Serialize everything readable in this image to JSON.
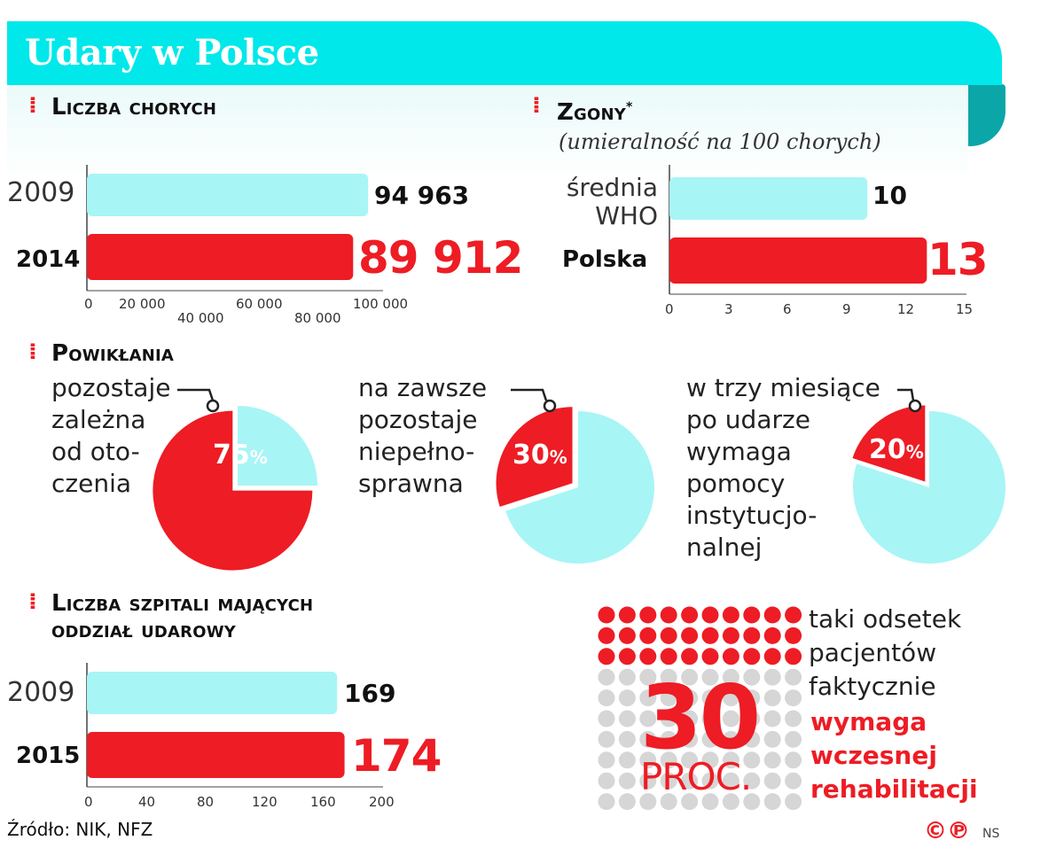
{
  "title": "Udary w Polsce",
  "colors": {
    "accent_red": "#ee1c24",
    "light_cyan": "#a8f5f6",
    "header_cyan": "#00e8ea",
    "dot_grey": "#d6d6d6"
  },
  "chart_data": [
    {
      "type": "bar",
      "orientation": "horizontal",
      "title": "Liczba chorych",
      "categories": [
        "2009",
        "2014"
      ],
      "values": [
        94963,
        89912
      ],
      "value_labels": [
        "94 963",
        "89 912"
      ],
      "xlim": [
        0,
        100000
      ],
      "ticks": [
        0,
        20000,
        40000,
        60000,
        80000,
        100000
      ],
      "tick_labels": [
        "0",
        "20 000",
        "40 000",
        "60 000",
        "80 000",
        "100 000"
      ]
    },
    {
      "type": "bar",
      "orientation": "horizontal",
      "title": "Zgony",
      "title_mark": "*",
      "subtitle": "(umieralność na 100 chorych)",
      "categories": [
        "średnia\nWHO",
        "Polska"
      ],
      "values": [
        10,
        13
      ],
      "value_labels": [
        "10",
        "13"
      ],
      "xlim": [
        0,
        15
      ],
      "ticks": [
        0,
        3,
        6,
        9,
        12,
        15
      ],
      "tick_labels": [
        "0",
        "3",
        "6",
        "9",
        "12",
        "15"
      ]
    },
    {
      "type": "pie",
      "title": "Powikłania",
      "pies": [
        {
          "label": "pozostaje\nzależna\nod oto-\nczenia",
          "value": 75,
          "value_label": "75"
        },
        {
          "label": "na zawsze\npozostaje\nniepełno-\nsprawna",
          "value": 30,
          "value_label": "30"
        },
        {
          "label": "w trzy miesiące\npo udarze\nwymaga\npomocy\ninstytucjo-\nnalnej",
          "value": 20,
          "value_label": "20"
        }
      ],
      "unit": "%"
    },
    {
      "type": "bar",
      "orientation": "horizontal",
      "title": "Liczba szpitali mających\noddział udarowy",
      "categories": [
        "2009",
        "2015"
      ],
      "values": [
        169,
        174
      ],
      "value_labels": [
        "169",
        "174"
      ],
      "xlim": [
        0,
        200
      ],
      "ticks": [
        0,
        40,
        80,
        120,
        160,
        200
      ],
      "tick_labels": [
        "0",
        "40",
        "80",
        "120",
        "160",
        "200"
      ]
    },
    {
      "type": "dot-matrix",
      "value": 30,
      "value_label": "30",
      "unit": "PROC.",
      "total_dots": 100,
      "text": "taki odsetek\npacjentów\nfaktycznie",
      "text_highlight": "wymaga\nwczesnej\nrehabilitacji"
    }
  ],
  "source": "Źródło: NIK, NFZ",
  "copyright": "©℗",
  "author": "NS"
}
